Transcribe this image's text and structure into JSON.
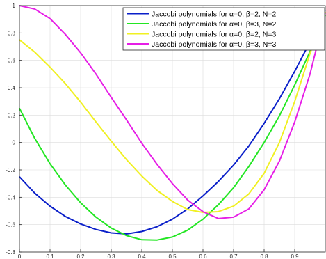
{
  "chart_data": {
    "type": "line",
    "title": "",
    "xlabel": "",
    "ylabel": "",
    "xlim": [
      0,
      1
    ],
    "ylim": [
      -0.8,
      1
    ],
    "grid": true,
    "legend_placement": "top-right",
    "x": [
      0,
      0.05,
      0.1,
      0.15,
      0.2,
      0.25,
      0.3,
      0.35,
      0.4,
      0.45,
      0.5,
      0.55,
      0.6,
      0.65,
      0.7,
      0.75,
      0.8,
      0.85,
      0.9,
      0.95,
      1.0
    ],
    "x_ticks": [
      {
        "value": 0,
        "label": "0"
      },
      {
        "value": 0.1,
        "label": "0.1"
      },
      {
        "value": 0.2,
        "label": "0.2"
      },
      {
        "value": 0.3,
        "label": "0.3"
      },
      {
        "value": 0.4,
        "label": "0.4"
      },
      {
        "value": 0.5,
        "label": "0.5"
      },
      {
        "value": 0.6,
        "label": "0.6"
      },
      {
        "value": 0.7,
        "label": "0.7"
      },
      {
        "value": 0.8,
        "label": "0.8"
      },
      {
        "value": 0.9,
        "label": "0.9"
      }
    ],
    "y_ticks": [
      {
        "value": -0.8,
        "label": "-0.8"
      },
      {
        "value": -0.6,
        "label": "-0.6"
      },
      {
        "value": -0.4,
        "label": "-0.4"
      },
      {
        "value": -0.2,
        "label": "-0.2"
      },
      {
        "value": 0,
        "label": "0"
      },
      {
        "value": 0.2,
        "label": "0.2"
      },
      {
        "value": 0.4,
        "label": "0.4"
      },
      {
        "value": 0.6,
        "label": "0.6"
      },
      {
        "value": 0.8,
        "label": "0.8"
      },
      {
        "value": 1,
        "label": "1"
      }
    ],
    "series": [
      {
        "name": "Jaccobi polynomials for α=0, β=2, N=2",
        "color": "#0a1fc9",
        "values": [
          -0.25,
          -0.37,
          -0.465,
          -0.54,
          -0.595,
          -0.635,
          -0.66,
          -0.668,
          -0.65,
          -0.615,
          -0.56,
          -0.485,
          -0.39,
          -0.285,
          -0.165,
          -0.025,
          0.14,
          0.32,
          0.52,
          0.735,
          0.97
        ]
      },
      {
        "name": "Jaccobi polynomials for α=0, β=3, N=2",
        "color": "#22e622",
        "values": [
          0.25,
          0.03,
          -0.155,
          -0.31,
          -0.44,
          -0.545,
          -0.625,
          -0.68,
          -0.71,
          -0.712,
          -0.69,
          -0.64,
          -0.56,
          -0.455,
          -0.33,
          -0.175,
          0.0,
          0.195,
          0.42,
          0.665,
          0.93
        ]
      },
      {
        "name": "Jaccobi polynomials for α=0, β=2, N=3",
        "color": "#f0f022",
        "values": [
          0.75,
          0.66,
          0.55,
          0.43,
          0.295,
          0.15,
          0.01,
          -0.125,
          -0.245,
          -0.35,
          -0.43,
          -0.49,
          -0.51,
          -0.505,
          -0.465,
          -0.375,
          -0.225,
          -0.0,
          0.3,
          0.65,
          0.955
        ]
      },
      {
        "name": "Jaccobi polynomials for α=0, β=3, N=3",
        "color": "#e61ee6",
        "values": [
          1.0,
          0.975,
          0.905,
          0.79,
          0.655,
          0.5,
          0.33,
          0.165,
          -0.005,
          -0.16,
          -0.3,
          -0.42,
          -0.505,
          -0.555,
          -0.545,
          -0.485,
          -0.345,
          -0.135,
          0.15,
          0.5,
          0.95
        ]
      }
    ]
  }
}
